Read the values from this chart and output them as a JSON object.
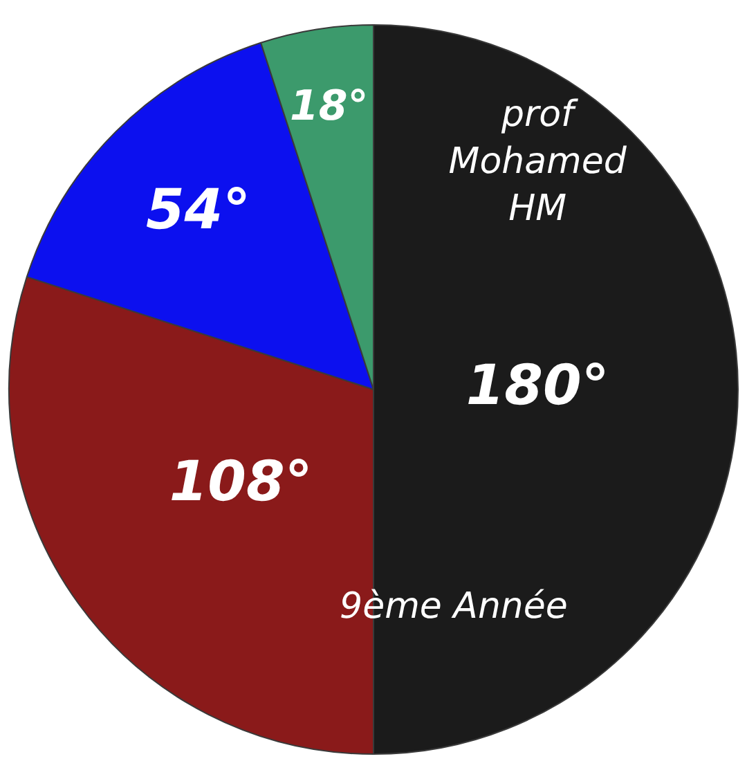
{
  "chart_data": {
    "type": "pie",
    "categories": [
      null,
      null,
      null,
      null
    ],
    "values": [
      180,
      108,
      54,
      18
    ],
    "colors": [
      "#1b1b1b",
      "#8a1a1a",
      "#0c10ef",
      "#3c9a6c"
    ],
    "value_labels": [
      "180°",
      "108°",
      "54°",
      "18°"
    ],
    "annotations": [
      "prof Mohamed HM",
      "9ème Année"
    ],
    "legend": false
  }
}
